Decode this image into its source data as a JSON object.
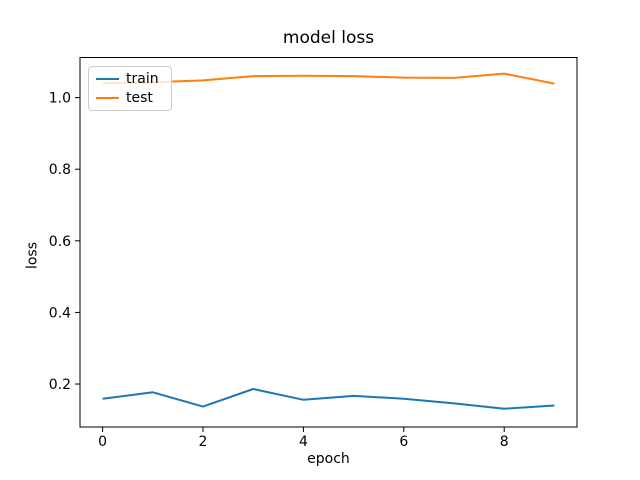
{
  "figure": {
    "title": "model loss",
    "xlabel": "epoch",
    "ylabel": "loss"
  },
  "legend": {
    "items": [
      {
        "label": "train",
        "color": "#1f77b4"
      },
      {
        "label": "test",
        "color": "#ff7f0e"
      }
    ]
  },
  "chart_data": {
    "type": "line",
    "title": "model loss",
    "xlabel": "epoch",
    "ylabel": "loss",
    "x": [
      0,
      1,
      2,
      3,
      4,
      5,
      6,
      7,
      8,
      9
    ],
    "series": [
      {
        "name": "train",
        "color": "#1f77b4",
        "values": [
          0.159,
          0.177,
          0.137,
          0.186,
          0.156,
          0.167,
          0.159,
          0.146,
          0.131,
          0.14
        ]
      },
      {
        "name": "test",
        "color": "#ff7f0e",
        "values": [
          1.04,
          1.043,
          1.048,
          1.06,
          1.061,
          1.06,
          1.056,
          1.055,
          1.067,
          1.039
        ]
      }
    ],
    "xlim": [
      -0.45,
      9.45
    ],
    "ylim": [
      0.08,
      1.112
    ],
    "x_ticks": [
      0,
      2,
      4,
      6,
      8
    ],
    "y_ticks": [
      0.2,
      0.4,
      0.6,
      0.8,
      1.0
    ],
    "grid": false,
    "legend_position": "upper left",
    "axis_color": "#000000",
    "background": "#ffffff"
  }
}
